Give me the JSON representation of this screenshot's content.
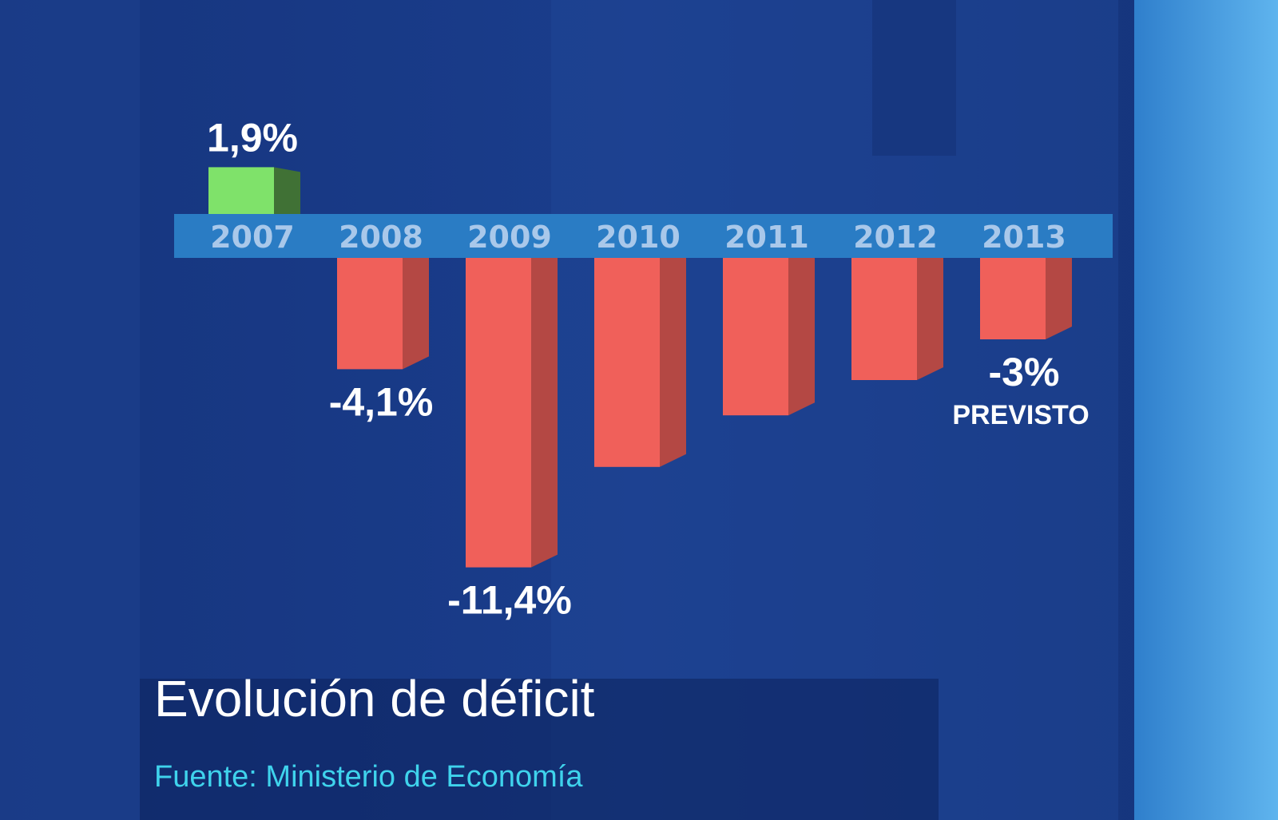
{
  "chart_data": {
    "type": "bar",
    "title": "Evolución de déficit",
    "source": "Fuente:  Ministerio de Economía",
    "categories": [
      "2007",
      "2008",
      "2009",
      "2010",
      "2011",
      "2012",
      "2013"
    ],
    "values": [
      1.9,
      -4.1,
      -11.4,
      -7.7,
      -5.8,
      -4.5,
      -3
    ],
    "value_labels": [
      "1,9%",
      "-4,1%",
      "-11,4%",
      null,
      null,
      null,
      "-3%"
    ],
    "annotations": [
      "PREVISTO"
    ],
    "positive_color": "#7fe26a",
    "negative_color": "#f0605a"
  }
}
